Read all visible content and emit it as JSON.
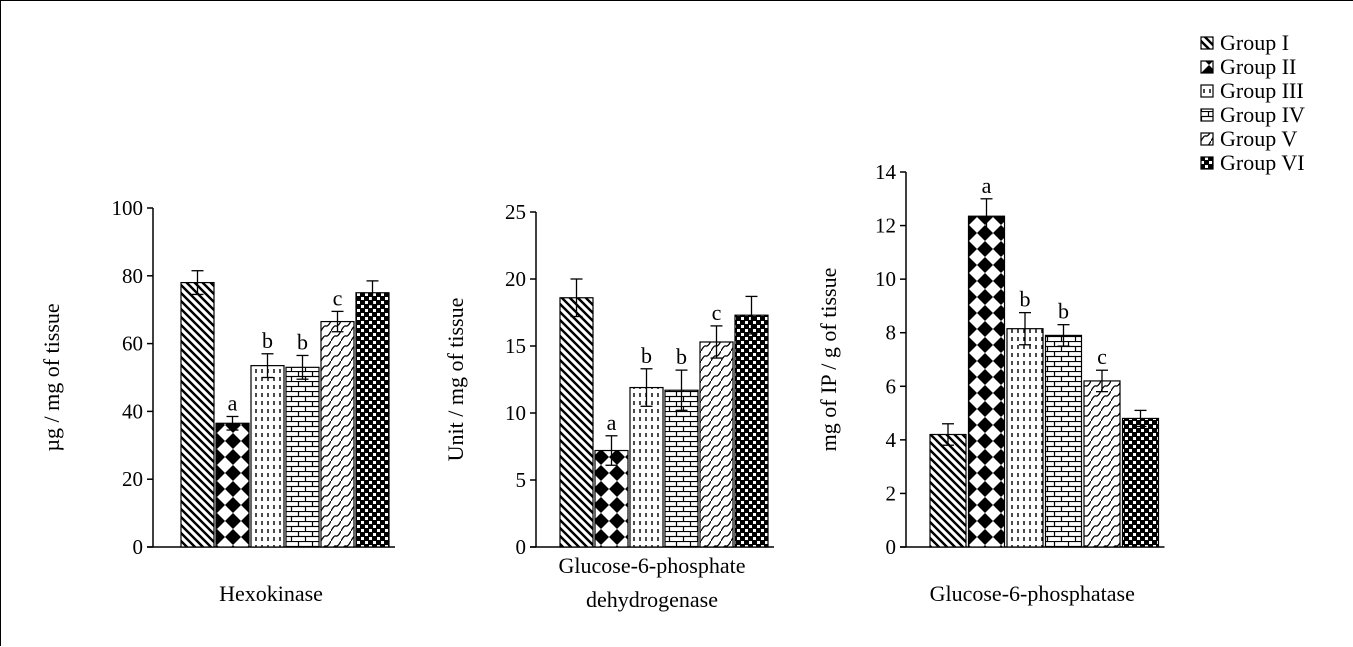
{
  "chart_data": [
    {
      "type": "bar",
      "title": "",
      "xlabel": [
        "Hexokinase"
      ],
      "ylabel": "µg / mg of tissue",
      "ylim": [
        0,
        100
      ],
      "yticks": [
        0,
        20,
        40,
        60,
        80,
        100
      ],
      "series": [
        {
          "name": "Group I",
          "value": 78,
          "error": 3.5,
          "label": ""
        },
        {
          "name": "Group II",
          "value": 36.5,
          "error": 2,
          "label": "a"
        },
        {
          "name": "Group III",
          "value": 53.5,
          "error": 3.5,
          "label": "b"
        },
        {
          "name": "Group IV",
          "value": 53,
          "error": 3.5,
          "label": "b"
        },
        {
          "name": "Group V",
          "value": 66.5,
          "error": 3,
          "label": "c"
        },
        {
          "name": "Group VI",
          "value": 75,
          "error": 3.5,
          "label": ""
        }
      ]
    },
    {
      "type": "bar",
      "title": "",
      "xlabel": [
        "Glucose-6-phosphate",
        "dehydrogenase"
      ],
      "ylabel": "Unit / mg of tissue",
      "ylim": [
        0,
        25
      ],
      "yticks": [
        0,
        5,
        10,
        15,
        20,
        25
      ],
      "series": [
        {
          "name": "Group I",
          "value": 18.6,
          "error": 1.4,
          "label": ""
        },
        {
          "name": "Group II",
          "value": 7.2,
          "error": 1.1,
          "label": "a"
        },
        {
          "name": "Group III",
          "value": 11.9,
          "error": 1.4,
          "label": "b"
        },
        {
          "name": "Group IV",
          "value": 11.7,
          "error": 1.5,
          "label": "b"
        },
        {
          "name": "Group V",
          "value": 15.3,
          "error": 1.2,
          "label": "c"
        },
        {
          "name": "Group VI",
          "value": 17.3,
          "error": 1.4,
          "label": ""
        }
      ]
    },
    {
      "type": "bar",
      "title": "",
      "xlabel": [
        "Glucose-6-phosphatase"
      ],
      "ylabel": "mg of IP / g of tissue",
      "ylim": [
        0,
        14
      ],
      "yticks": [
        0,
        2,
        4,
        6,
        8,
        10,
        12,
        14
      ],
      "series": [
        {
          "name": "Group I",
          "value": 4.2,
          "error": 0.4,
          "label": ""
        },
        {
          "name": "Group II",
          "value": 12.35,
          "error": 0.65,
          "label": "a"
        },
        {
          "name": "Group III",
          "value": 8.15,
          "error": 0.6,
          "label": "b"
        },
        {
          "name": "Group IV",
          "value": 7.9,
          "error": 0.4,
          "label": "b"
        },
        {
          "name": "Group V",
          "value": 6.2,
          "error": 0.4,
          "label": "c"
        },
        {
          "name": "Group VI",
          "value": 4.8,
          "error": 0.3,
          "label": ""
        }
      ]
    }
  ],
  "legend": {
    "position": "top-right",
    "items": [
      "Group I",
      "Group II",
      "Group III",
      "Group IV",
      "Group V",
      "Group VI"
    ]
  }
}
